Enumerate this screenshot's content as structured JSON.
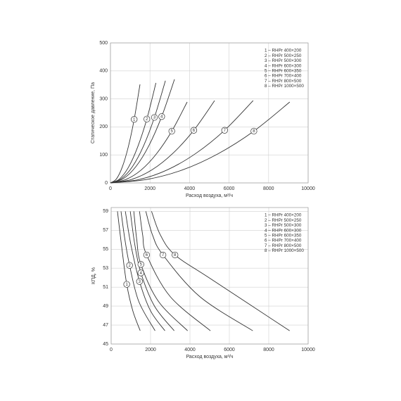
{
  "chart_data": [
    {
      "type": "line",
      "ylabel": "Статическое давление, Па",
      "xlabel": "Расход воздуха, м³/ч",
      "xlim": [
        0,
        10000
      ],
      "xticks": [
        0,
        2000,
        4000,
        6000,
        8000,
        10000
      ],
      "ylim": [
        0,
        500
      ],
      "yticks": [
        0,
        100,
        200,
        300,
        400,
        500
      ],
      "grid": true,
      "legend": "upper right",
      "series": [
        {
          "name": "1 – RHPr 400×200",
          "label": "1",
          "color": "#333333",
          "x": [
            0,
            300,
            600,
            900,
            1200,
            1495
          ],
          "values": [
            0,
            14,
            57,
            128,
            227,
            352
          ]
        },
        {
          "name": "2 – RHPr 500×250",
          "label": "2",
          "color": "#333333",
          "x": [
            0,
            460,
            920,
            1380,
            1840,
            2300
          ],
          "values": [
            0,
            14,
            57,
            129,
            228,
            357
          ]
        },
        {
          "name": "3 – RHPr 500×300",
          "label": "3",
          "color": "#333333",
          "x": [
            0,
            556,
            1112,
            1668,
            2224,
            2780
          ],
          "values": [
            0,
            15,
            58,
            131,
            234,
            365
          ]
        },
        {
          "name": "4 – RHPr 600×300",
          "label": "4",
          "color": "#333333",
          "x": [
            0,
            648,
            1296,
            1944,
            2592,
            3240
          ],
          "values": [
            0,
            15,
            59,
            133,
            237,
            370
          ]
        },
        {
          "name": "5 – RHPr 600×350",
          "label": "5",
          "color": "#333333",
          "x": [
            0,
            776,
            1552,
            2328,
            3104,
            3880
          ],
          "values": [
            0,
            12,
            46,
            104,
            185,
            289
          ]
        },
        {
          "name": "6 – RHPr 700×400",
          "label": "6",
          "color": "#333333",
          "x": [
            0,
            1054,
            2108,
            3162,
            4216,
            5270
          ],
          "values": [
            0,
            12,
            47,
            106,
            188,
            294
          ]
        },
        {
          "name": "7 – RHPr 800×500",
          "label": "7",
          "color": "#333333",
          "x": [
            0,
            1444,
            2888,
            4332,
            5776,
            7220
          ],
          "values": [
            0,
            12,
            47,
            106,
            188,
            294
          ]
        },
        {
          "name": "8 – RHPr 1000×500",
          "label": "8",
          "color": "#333333",
          "x": [
            0,
            1814,
            3628,
            5442,
            7256,
            9070
          ],
          "values": [
            0,
            12,
            46,
            104,
            185,
            289
          ]
        }
      ]
    },
    {
      "type": "line",
      "ylabel": "КПД, %",
      "xlabel": "Расход воздуха, м³/ч",
      "xlim": [
        0,
        10000
      ],
      "xticks": [
        0,
        2000,
        4000,
        6000,
        8000,
        10000
      ],
      "ylim": [
        45,
        59.4
      ],
      "yticks": [
        45,
        47,
        49,
        51,
        53,
        55,
        57,
        59
      ],
      "grid": true,
      "legend": "upper right",
      "series": [
        {
          "name": "1 – RHPr 400×200",
          "label": "1",
          "color": "#333333",
          "x": [
            320,
            550,
            790,
            1100,
            1475
          ],
          "values": [
            59,
            55,
            51.3,
            48.5,
            46.4
          ]
        },
        {
          "name": "2 – RHPr 500×250",
          "label": "2",
          "color": "#333333",
          "x": [
            500,
            700,
            935,
            1400,
            2230
          ],
          "values": [
            59,
            56,
            53.3,
            49.5,
            46.4
          ]
        },
        {
          "name": "3 – RHPr 500×300",
          "label": "3",
          "color": "#333333",
          "x": [
            720,
            1000,
            1440,
            2000,
            2730
          ],
          "values": [
            59,
            55.5,
            51.6,
            48.5,
            46.4
          ]
        },
        {
          "name": "4 – RHPr 600×300",
          "label": "4",
          "color": "#333333",
          "x": [
            970,
            1200,
            1510,
            2200,
            3200
          ],
          "values": [
            59,
            55.5,
            52.5,
            49,
            46.4
          ]
        },
        {
          "name": "5 – RHPr 600×350",
          "label": "5",
          "color": "#333333",
          "x": [
            1150,
            1300,
            1510,
            2400,
            3880
          ],
          "values": [
            59,
            56,
            53.4,
            49.5,
            46.4
          ]
        },
        {
          "name": "6 – RHPr 700×400",
          "label": "6",
          "color": "#333333",
          "x": [
            1440,
            1600,
            1800,
            3000,
            5040
          ],
          "values": [
            59,
            56.5,
            54.4,
            50,
            46.4
          ]
        },
        {
          "name": "7 – RHPr 800×500",
          "label": "7",
          "color": "#333333",
          "x": [
            1760,
            2100,
            2630,
            4500,
            7190
          ],
          "values": [
            59,
            56.5,
            54.4,
            50,
            46.4
          ]
        },
        {
          "name": "8 – RHPr 1000×500",
          "label": "8",
          "color": "#333333",
          "x": [
            2050,
            2500,
            3240,
            5110,
            9060
          ],
          "values": [
            59,
            56.5,
            54.4,
            51.8,
            46.4
          ]
        }
      ]
    }
  ]
}
